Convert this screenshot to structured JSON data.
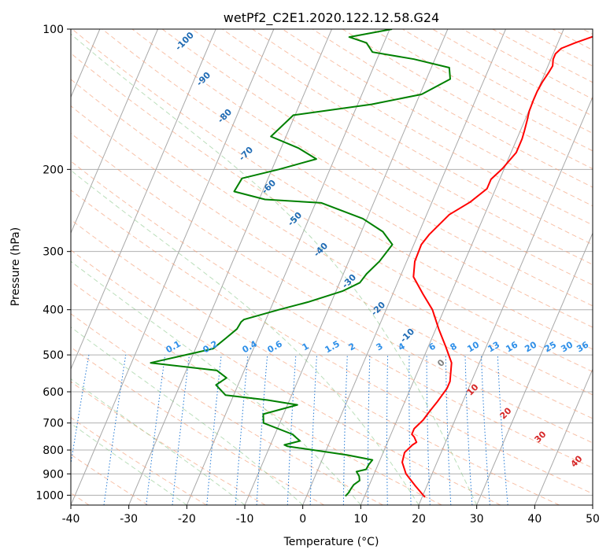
{
  "chart_data": {
    "type": "line",
    "title": "wetPf2_C2E1.2020.122.12.58.G24",
    "xlabel": "Temperature (°C)",
    "ylabel": "Pressure (hPa)",
    "xlim": [
      -40,
      50
    ],
    "ylim": [
      1050,
      100
    ],
    "y_scale": "log",
    "grid": true,
    "x_ticks": [
      -40,
      -30,
      -20,
      -10,
      0,
      10,
      20,
      30,
      40,
      50
    ],
    "y_ticks": [
      100,
      200,
      300,
      400,
      500,
      600,
      700,
      800,
      900,
      1000
    ],
    "series": [
      {
        "color": "#ff0000",
        "x": [
          20.5,
          18,
          15.5,
          14,
          13.7,
          14.5,
          15,
          14.2,
          13.6,
          13.6,
          14.5,
          15,
          15.6,
          16.3,
          16.3,
          15.2,
          13,
          10.5,
          8,
          5.2,
          2.3,
          1.4,
          1.3,
          1.9,
          3.9,
          6.6,
          8.5,
          8.5,
          9.7,
          10.9,
          10.9,
          10.7,
          10.4,
          10.1,
          10,
          10,
          10.2,
          10.6,
          10.8,
          10.4,
          10.4,
          11,
          13,
          15.4,
          16.7,
          17.7
        ],
        "y": [
          1010,
          955,
          900,
          850,
          810,
          780,
          770,
          750,
          740,
          720,
          690,
          660,
          630,
          590,
          570,
          520,
          480,
          440,
          400,
          370,
          340,
          315,
          290,
          276,
          250,
          235,
          220,
          210,
          199,
          184,
          172,
          165,
          157,
          150,
          142,
          136,
          130,
          124,
          120,
          116,
          113,
          110,
          107,
          104,
          102,
          100
        ]
      },
      {
        "color": "#008000",
        "x": [
          6.7,
          7,
          7.1,
          7.3,
          8,
          7.6,
          6.8,
          8.3,
          8.4,
          8.7,
          4,
          -7,
          -7.6,
          -5.2,
          -7,
          -12.8,
          -13.5,
          -8.3,
          -13.8,
          -21.4,
          -23.8,
          -22.5,
          -24.7,
          -36.7,
          -27,
          -25.5,
          -24.3,
          -24.1,
          -23.8,
          -18.5,
          -14,
          -8.9,
          -6.5,
          -6,
          -4.7,
          -3.7,
          -6.3,
          -10.7,
          -19,
          -29,
          -34.9,
          -34.5,
          -28.8,
          -23.1,
          -27,
          -32.6,
          -30.3,
          -17.6,
          -9.7,
          -5.9,
          -6.9,
          -13.6,
          -21.3,
          -23,
          -26.4,
          -19.6
        ],
        "y": [
          1005,
          988,
          970,
          950,
          930,
          910,
          890,
          880,
          860,
          840,
          820,
          785,
          780,
          765,
          740,
          700,
          670,
          640,
          625,
          610,
          580,
          560,
          540,
          520,
          485,
          460,
          440,
          425,
          420,
          400,
          385,
          365,
          350,
          335,
          315,
          290,
          272,
          255,
          236,
          232,
          223,
          209,
          200,
          190,
          180,
          170,
          153,
          145,
          138,
          128,
          121,
          116,
          112,
          107,
          104,
          100
        ]
      }
    ],
    "isotherm_labels": [
      -100,
      -90,
      -80,
      -70,
      -60,
      -50,
      -40,
      -30,
      -20,
      -10
    ],
    "mixing_ratio_labels": [
      "0.1",
      "0.2",
      "0.4",
      "0.6",
      "1",
      "1.5",
      "2",
      "3",
      "4",
      "6",
      "8",
      "10",
      "13",
      "16",
      "20",
      "25",
      "30",
      "36"
    ],
    "dry_adiabat_labels": [
      "0",
      "10",
      "20",
      "30",
      "40"
    ]
  }
}
